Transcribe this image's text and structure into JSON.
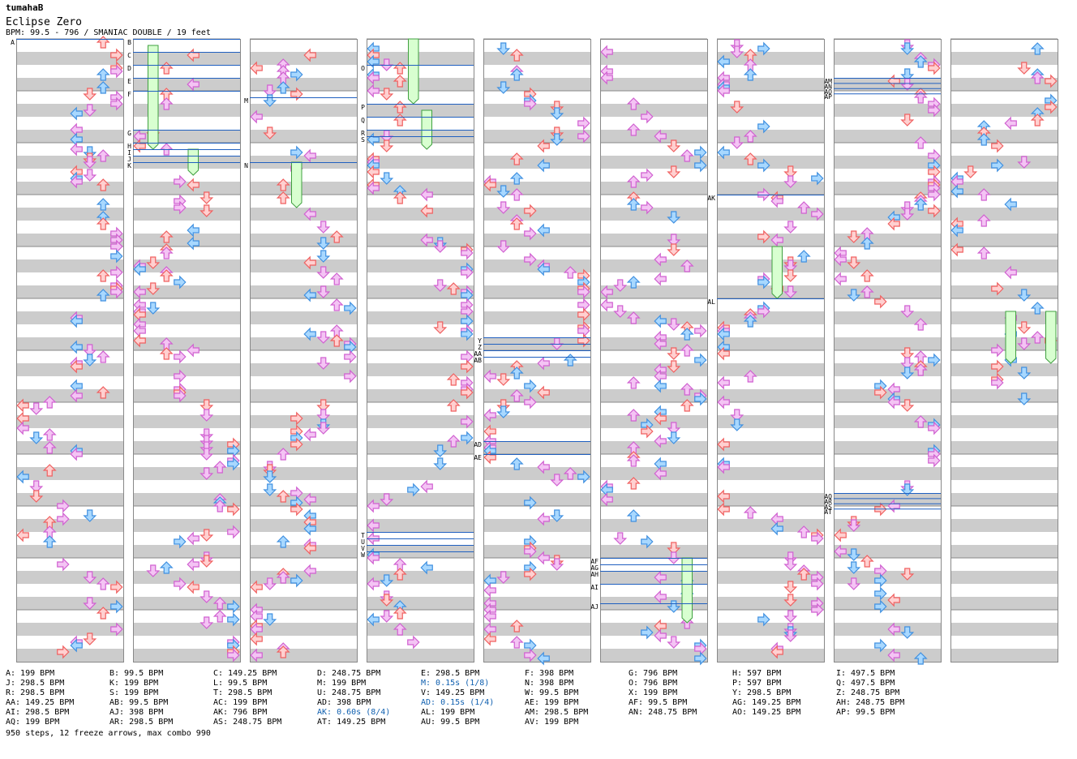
{
  "header": {
    "author": "tumahaB",
    "title": "Eclipse Zero",
    "meta": "BPM: 99.5 - 796 / SMANIAC DOUBLE / 19 feet"
  },
  "colors": {
    "red": "#f06060",
    "red_fill": "#ffd0d0",
    "blue": "#4090e0",
    "blue_fill": "#a8d8ff",
    "pink": "#d060d0",
    "pink_fill": "#f4c4f4",
    "green": "#40a040",
    "green_fill": "#d8ffd0",
    "marker": "#2060c0",
    "stripe": "#cccccc"
  },
  "chart_data": {
    "type": "table",
    "columns": 9,
    "measures_per_column": 12,
    "lanes": 8,
    "total_steps": 950,
    "freeze_arrows": 12,
    "max_combo": 990,
    "markers": [
      {
        "col": 0,
        "beat": 0,
        "label": "A"
      },
      {
        "col": 1,
        "beat": 0,
        "label": "B"
      },
      {
        "col": 1,
        "beat": 1,
        "label": "C"
      },
      {
        "col": 1,
        "beat": 2,
        "label": "D"
      },
      {
        "col": 1,
        "beat": 3,
        "label": "E"
      },
      {
        "col": 1,
        "beat": 4,
        "label": "F"
      },
      {
        "col": 1,
        "beat": 7,
        "label": "G"
      },
      {
        "col": 1,
        "beat": 8.0,
        "label": "H"
      },
      {
        "col": 1,
        "beat": 8.5,
        "label": "I"
      },
      {
        "col": 1,
        "beat": 9.0,
        "label": "J"
      },
      {
        "col": 1,
        "beat": 9.5,
        "label": "K"
      },
      {
        "col": 2,
        "beat": 4.5,
        "label": "M"
      },
      {
        "col": 2,
        "beat": 9.5,
        "label": "N"
      },
      {
        "col": 3,
        "beat": 2.0,
        "label": "O"
      },
      {
        "col": 3,
        "beat": 5.0,
        "label": "P"
      },
      {
        "col": 3,
        "beat": 6.0,
        "label": "Q"
      },
      {
        "col": 3,
        "beat": 7.0,
        "label": "R"
      },
      {
        "col": 3,
        "beat": 7.5,
        "label": "S"
      },
      {
        "col": 3,
        "beat": 38.0,
        "label": "T"
      },
      {
        "col": 3,
        "beat": 38.5,
        "label": "U"
      },
      {
        "col": 3,
        "beat": 39.0,
        "label": "V"
      },
      {
        "col": 3,
        "beat": 39.5,
        "label": "W"
      },
      {
        "col": 4,
        "beat": 23.0,
        "label": "Y"
      },
      {
        "col": 4,
        "beat": 23.5,
        "label": "Z"
      },
      {
        "col": 4,
        "beat": 24.0,
        "label": "AA"
      },
      {
        "col": 4,
        "beat": 24.5,
        "label": "AB"
      },
      {
        "col": 4,
        "beat": 31.0,
        "label": "AD"
      },
      {
        "col": 4,
        "beat": 32.0,
        "label": "AE"
      },
      {
        "col": 5,
        "beat": 40.0,
        "label": "AF"
      },
      {
        "col": 5,
        "beat": 40.5,
        "label": "AG"
      },
      {
        "col": 5,
        "beat": 41.0,
        "label": "AH"
      },
      {
        "col": 5,
        "beat": 42.0,
        "label": "AI"
      },
      {
        "col": 5,
        "beat": 43.5,
        "label": "AJ"
      },
      {
        "col": 6,
        "beat": 12.0,
        "label": "AK"
      },
      {
        "col": 6,
        "beat": 20.0,
        "label": "AL"
      },
      {
        "col": 7,
        "beat": 3.0,
        "label": "AM"
      },
      {
        "col": 7,
        "beat": 3.4,
        "label": "AN"
      },
      {
        "col": 7,
        "beat": 3.8,
        "label": "AO"
      },
      {
        "col": 7,
        "beat": 4.2,
        "label": "AP"
      },
      {
        "col": 7,
        "beat": 35.0,
        "label": "AQ"
      },
      {
        "col": 7,
        "beat": 35.4,
        "label": "AR"
      },
      {
        "col": 7,
        "beat": 35.8,
        "label": "AS"
      },
      {
        "col": 7,
        "beat": 36.2,
        "label": "AT"
      }
    ],
    "freezes": [
      {
        "col": 1,
        "lane": 1,
        "start": 0.5,
        "end": 8.5
      },
      {
        "col": 1,
        "lane": 4,
        "start": 8.5,
        "end": 10.5
      },
      {
        "col": 2,
        "lane": 3,
        "start": 9.5,
        "end": 13
      },
      {
        "col": 3,
        "lane": 3,
        "start": 0,
        "end": 5
      },
      {
        "col": 3,
        "lane": 4,
        "start": 5.5,
        "end": 8.5
      },
      {
        "col": 5,
        "lane": 6,
        "start": 40,
        "end": 45
      },
      {
        "col": 6,
        "lane": 4,
        "start": 16,
        "end": 20
      },
      {
        "col": 8,
        "lane": 4,
        "start": 21,
        "end": 25
      },
      {
        "col": 8,
        "lane": 7,
        "start": 21,
        "end": 25
      }
    ]
  },
  "legend": [
    [
      "A: 199 BPM",
      "J: 298.5 BPM",
      "R: 298.5 BPM",
      "AA: 149.25 BPM",
      "AI: 298.5 BPM",
      "AQ: 199 BPM"
    ],
    [
      "B: 99.5 BPM",
      "K: 199 BPM",
      "S: 199 BPM",
      "AB: 99.5 BPM",
      "AJ: 398 BPM",
      "AR: 298.5 BPM"
    ],
    [
      "C: 149.25 BPM",
      "L: 99.5 BPM",
      "T: 298.5 BPM",
      "AC: 199 BPM",
      "AK: 796 BPM",
      "AS: 248.75 BPM"
    ],
    [
      "D: 248.75 BPM",
      "M: 199 BPM",
      "U: 248.75 BPM",
      "AD: 398 BPM",
      "AK: 0.60s (8/4)",
      "AT: 149.25 BPM"
    ],
    [
      "E: 298.5 BPM",
      "M: 0.15s (1/8)",
      "V: 149.25 BPM",
      "AD: 0.15s (1/4)",
      "AL: 199 BPM",
      "AU: 99.5 BPM"
    ],
    [
      "F: 398 BPM",
      "N: 398 BPM",
      "W: 99.5 BPM",
      "AE: 199 BPM",
      "AM: 298.5 BPM",
      "AV: 199 BPM"
    ],
    [
      "G: 796 BPM",
      "O: 796 BPM",
      "X: 199 BPM",
      "AF: 99.5 BPM",
      "AN: 248.75 BPM"
    ],
    [
      "H: 597 BPM",
      "P: 597 BPM",
      "Y: 298.5 BPM",
      "AG: 149.25 BPM",
      "AO: 149.25 BPM"
    ],
    [
      "I: 497.5 BPM",
      "Q: 497.5 BPM",
      "Z: 248.75 BPM",
      "AH: 248.75 BPM",
      "AP: 99.5 BPM"
    ]
  ],
  "summary": "950 steps, 12 freeze arrows, max combo 990"
}
